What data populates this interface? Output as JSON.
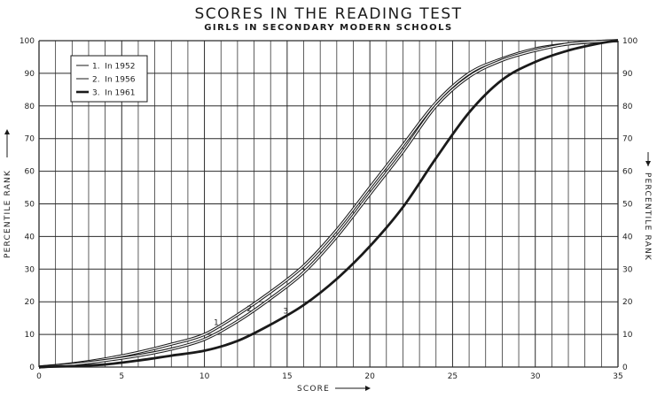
{
  "chart_data": {
    "type": "line",
    "title": "SCORES IN THE READING TEST",
    "subtitle": "GIRLS IN SECONDARY MODERN SCHOOLS",
    "xlabel": "SCORE",
    "ylabel_left": "PERCENTILE RANK",
    "ylabel_right": "PERCENTILE RANK",
    "xlim": [
      0,
      35
    ],
    "ylim": [
      0,
      100
    ],
    "xticks": [
      0,
      5,
      10,
      15,
      20,
      25,
      30,
      35
    ],
    "yticks": [
      0,
      10,
      20,
      30,
      40,
      50,
      60,
      70,
      80,
      90,
      100
    ],
    "grid": true,
    "legend_position": "top-left",
    "series": [
      {
        "name": "1. In 1952",
        "label": "1",
        "line": "double",
        "x": [
          0,
          2,
          4,
          6,
          8,
          10,
          12,
          14,
          16,
          18,
          20,
          22,
          24,
          26,
          28,
          30,
          32,
          34,
          35
        ],
        "y": [
          0,
          1,
          2.5,
          4.5,
          7,
          10,
          16,
          23,
          31,
          42,
          55,
          68,
          81,
          90,
          94.5,
          97.5,
          99,
          99.8,
          100
        ]
      },
      {
        "name": "2. In 1956",
        "label": "2",
        "line": "double",
        "x": [
          0,
          2,
          4,
          6,
          8,
          10,
          12,
          14,
          16,
          18,
          20,
          22,
          24,
          26,
          28,
          30,
          32,
          34,
          35
        ],
        "y": [
          0,
          0.8,
          2,
          3.5,
          5.5,
          8.5,
          14,
          21,
          29,
          40,
          53,
          66,
          80,
          89,
          94,
          97,
          99,
          99.8,
          100
        ]
      },
      {
        "name": "3. In 1961",
        "label": "3",
        "line": "thick",
        "x": [
          0,
          2,
          4,
          6,
          8,
          10,
          12,
          14,
          16,
          18,
          20,
          22,
          24,
          26,
          28,
          30,
          32,
          34,
          35
        ],
        "y": [
          0,
          0.3,
          0.8,
          2,
          3.5,
          5,
          8,
          13,
          19,
          27,
          37,
          49,
          64,
          78,
          88,
          93.5,
          97,
          99.3,
          100
        ]
      }
    ],
    "legend": [
      "1.  In 1952",
      "2.  In 1956",
      "3.  In 1961"
    ]
  },
  "colors": {
    "line": "#1a1a1a",
    "grid": "#2a2a2a",
    "background": "#ffffff"
  },
  "icons": {
    "x_axis_arrow": "arrow-right-icon",
    "y_axis_arrow": "arrow-up-icon",
    "y_axis_arrow_right": "arrow-down-icon"
  }
}
